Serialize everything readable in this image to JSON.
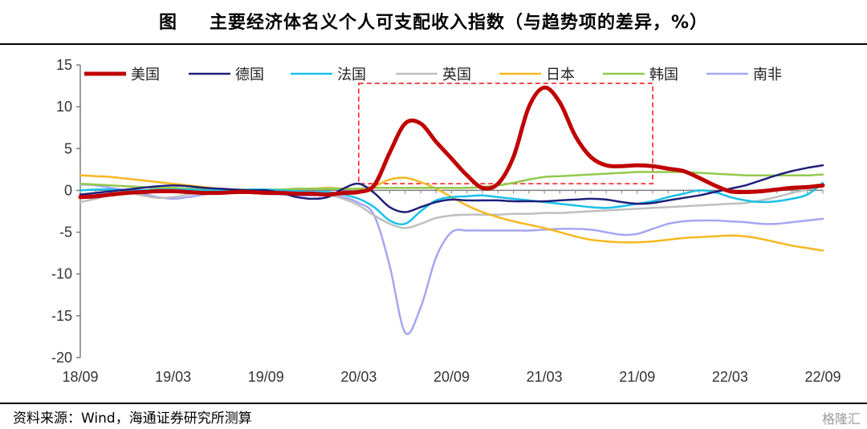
{
  "title": {
    "figure_label": "图",
    "text": "主要经济体名义个人可支配收入指数（与趋势项的差异，%）"
  },
  "footer": {
    "source": "资料来源：Wind，海通证券研究所测算",
    "watermark": "格隆汇"
  },
  "chart_data": {
    "type": "line",
    "xlabel": "",
    "ylabel": "",
    "ylim": [
      -20,
      15
    ],
    "yticks": [
      15,
      10,
      5,
      0,
      -5,
      -10,
      -15,
      -20
    ],
    "xticks": [
      "18/09",
      "19/03",
      "19/09",
      "20/03",
      "20/09",
      "21/03",
      "21/09",
      "22/03",
      "22/09"
    ],
    "x_months": [
      "18/09",
      "18/10",
      "18/11",
      "18/12",
      "19/01",
      "19/02",
      "19/03",
      "19/04",
      "19/05",
      "19/06",
      "19/07",
      "19/08",
      "19/09",
      "19/10",
      "19/11",
      "19/12",
      "20/01",
      "20/02",
      "20/03",
      "20/04",
      "20/05",
      "20/06",
      "20/07",
      "20/08",
      "20/09",
      "20/10",
      "20/11",
      "20/12",
      "21/01",
      "21/02",
      "21/03",
      "21/04",
      "21/05",
      "21/06",
      "21/07",
      "21/08",
      "21/09",
      "21/10",
      "21/11",
      "21/12",
      "22/01",
      "22/02",
      "22/03",
      "22/04",
      "22/05",
      "22/06",
      "22/07",
      "22/08",
      "22/09"
    ],
    "grid": false,
    "legend_position": "top",
    "annotation": "red dashed rectangle highlighting 20/03–21/10 US income surge",
    "series": [
      {
        "name": "美国",
        "color": "#C00000",
        "width": 5,
        "values": [
          -0.8,
          -0.7,
          -0.5,
          -0.3,
          -0.2,
          -0.1,
          -0.1,
          -0.2,
          -0.3,
          -0.3,
          -0.2,
          -0.2,
          -0.3,
          -0.3,
          -0.4,
          -0.4,
          -0.5,
          -0.3,
          -0.2,
          0.6,
          4.5,
          8.0,
          8.0,
          5.8,
          3.8,
          1.8,
          0.3,
          0.8,
          4.0,
          10.0,
          12.3,
          10.5,
          6.5,
          4.0,
          3.0,
          2.9,
          3.0,
          2.9,
          2.6,
          2.3,
          1.5,
          0.6,
          -0.1,
          -0.2,
          -0.1,
          0.1,
          0.3,
          0.4,
          0.6
        ]
      },
      {
        "name": "德国",
        "color": "#1F1F7A",
        "width": 2.5,
        "values": [
          -0.5,
          -0.3,
          -0.1,
          0.1,
          0.3,
          0.5,
          0.6,
          0.5,
          0.3,
          0.2,
          0.1,
          0.0,
          0.0,
          -0.3,
          -0.8,
          -1.0,
          -0.8,
          0.2,
          0.8,
          -0.3,
          -2.0,
          -2.6,
          -2.0,
          -1.4,
          -1.1,
          -1.2,
          -1.2,
          -1.2,
          -1.3,
          -1.3,
          -1.3,
          -1.2,
          -1.1,
          -1.0,
          -1.1,
          -1.4,
          -1.6,
          -1.5,
          -1.2,
          -0.9,
          -0.6,
          -0.2,
          0.2,
          0.6,
          1.2,
          1.8,
          2.3,
          2.7,
          3.0
        ]
      },
      {
        "name": "法国",
        "color": "#19C0E8",
        "width": 2.5,
        "values": [
          0.0,
          0.1,
          0.1,
          0.0,
          0.0,
          0.1,
          0.1,
          0.1,
          0.0,
          0.0,
          0.0,
          0.1,
          0.1,
          0.0,
          -0.1,
          -0.2,
          -0.2,
          -0.5,
          -1.0,
          -2.0,
          -3.6,
          -4.0,
          -2.5,
          -1.2,
          -0.8,
          -0.7,
          -0.6,
          -0.8,
          -1.0,
          -1.2,
          -1.4,
          -1.6,
          -1.8,
          -2.0,
          -2.1,
          -1.9,
          -1.6,
          -1.3,
          -0.8,
          -0.4,
          0.0,
          -0.2,
          -0.8,
          -1.2,
          -1.4,
          -1.3,
          -1.0,
          -0.5,
          0.9
        ]
      },
      {
        "name": "英国",
        "color": "#BFBFBF",
        "width": 2.5,
        "values": [
          -1.4,
          -1.0,
          -0.5,
          -0.2,
          -0.6,
          -0.9,
          -0.8,
          -0.5,
          -0.3,
          -0.2,
          -0.2,
          -0.3,
          -0.4,
          -0.4,
          -0.3,
          -0.3,
          -0.5,
          -1.0,
          -1.8,
          -3.0,
          -4.0,
          -4.5,
          -4.0,
          -3.3,
          -3.0,
          -2.9,
          -2.9,
          -2.9,
          -2.8,
          -2.8,
          -2.7,
          -2.7,
          -2.6,
          -2.5,
          -2.4,
          -2.3,
          -2.2,
          -2.1,
          -2.0,
          -1.9,
          -1.8,
          -1.7,
          -1.6,
          -1.5,
          -1.2,
          -0.8,
          -0.3,
          0.1,
          0.5
        ]
      },
      {
        "name": "日本",
        "color": "#F5B820",
        "width": 2.5,
        "values": [
          1.8,
          1.7,
          1.6,
          1.4,
          1.2,
          1.0,
          0.8,
          0.6,
          0.4,
          0.2,
          0.1,
          0.1,
          0.1,
          0.1,
          0.2,
          0.2,
          0.3,
          0.2,
          0.2,
          0.5,
          1.3,
          1.5,
          1.0,
          0.2,
          -0.8,
          -1.8,
          -2.6,
          -3.2,
          -3.7,
          -4.1,
          -4.5,
          -5.0,
          -5.5,
          -5.9,
          -6.1,
          -6.2,
          -6.2,
          -6.1,
          -5.9,
          -5.7,
          -5.6,
          -5.5,
          -5.4,
          -5.5,
          -5.8,
          -6.2,
          -6.6,
          -6.9,
          -7.2
        ]
      },
      {
        "name": "韩国",
        "color": "#92C94C",
        "width": 2.5,
        "values": [
          0.8,
          0.7,
          0.6,
          0.5,
          0.4,
          0.3,
          0.3,
          0.2,
          0.2,
          0.2,
          0.1,
          0.1,
          0.1,
          0.1,
          0.2,
          0.2,
          0.2,
          0.2,
          0.2,
          0.3,
          0.3,
          0.3,
          0.3,
          0.3,
          0.3,
          0.3,
          0.4,
          0.6,
          0.9,
          1.3,
          1.6,
          1.7,
          1.8,
          1.9,
          2.0,
          2.1,
          2.2,
          2.2,
          2.2,
          2.2,
          2.1,
          2.0,
          1.9,
          1.8,
          1.8,
          1.8,
          1.8,
          1.8,
          1.9
        ]
      },
      {
        "name": "南非",
        "color": "#A6A6F2",
        "width": 2.5,
        "values": [
          0.7,
          0.6,
          0.3,
          0.0,
          -0.4,
          -0.8,
          -1.0,
          -0.8,
          -0.5,
          -0.3,
          -0.3,
          -0.3,
          -0.4,
          -0.5,
          -0.6,
          -0.6,
          -0.5,
          -0.8,
          -1.5,
          -3.0,
          -9.0,
          -17.0,
          -14.0,
          -8.0,
          -5.0,
          -4.8,
          -4.8,
          -4.8,
          -4.8,
          -4.8,
          -4.7,
          -4.6,
          -4.6,
          -4.7,
          -5.0,
          -5.3,
          -5.2,
          -4.6,
          -4.0,
          -3.7,
          -3.6,
          -3.6,
          -3.7,
          -3.8,
          -4.0,
          -4.0,
          -3.8,
          -3.6,
          -3.4
        ]
      }
    ]
  }
}
